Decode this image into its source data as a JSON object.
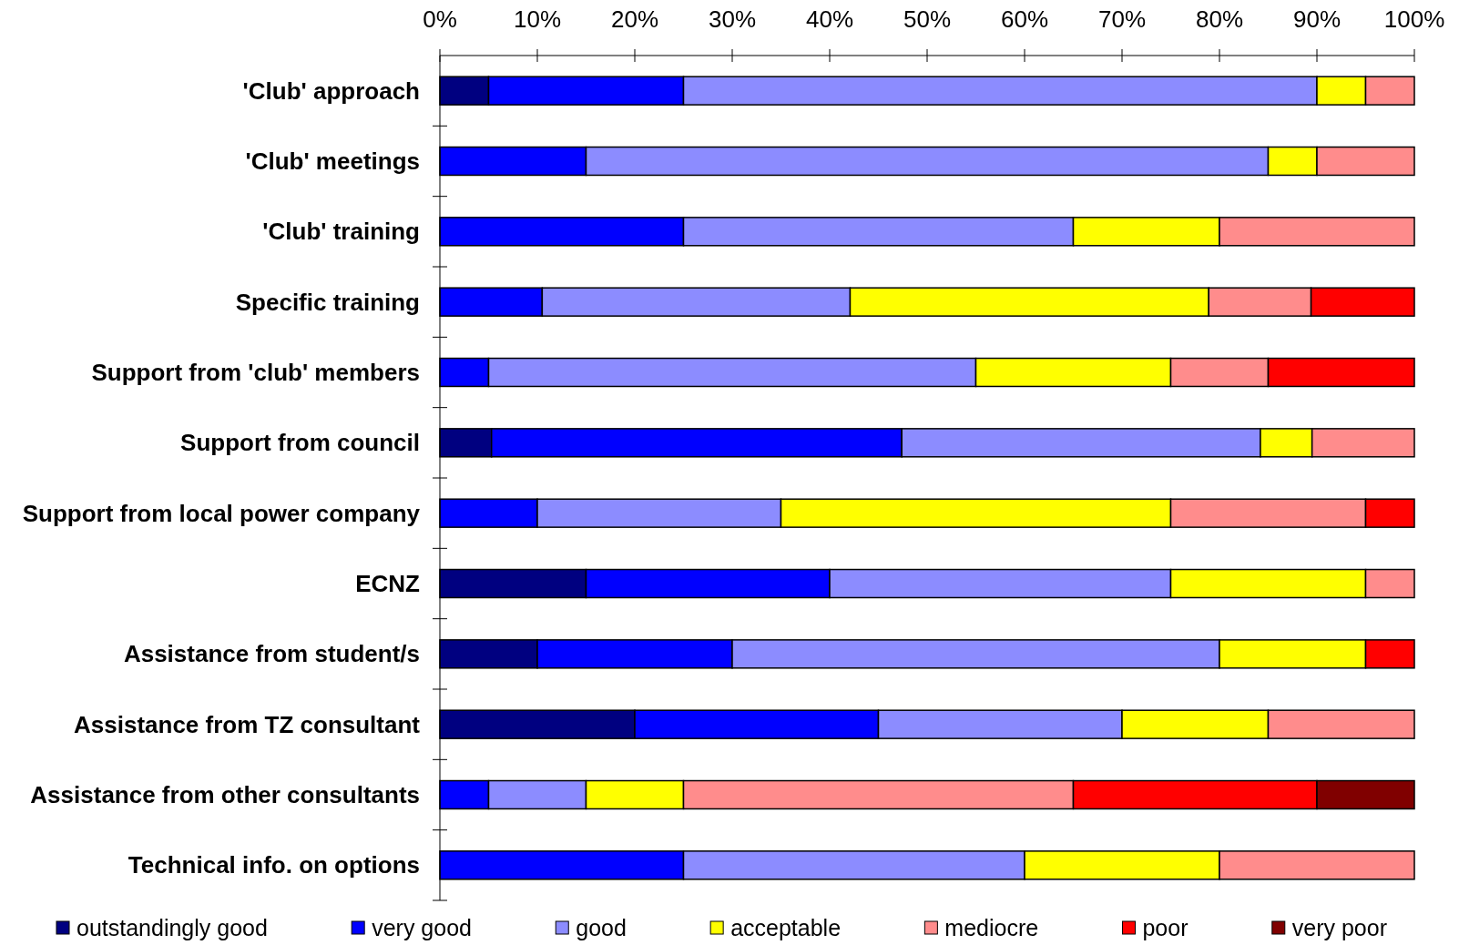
{
  "chart_data": {
    "type": "bar",
    "orientation": "horizontal",
    "stacked": true,
    "categories": [
      "'Club' approach",
      "'Club' meetings",
      "'Club' training",
      "Specific training",
      "Support from 'club' members",
      "Support from council",
      "Support from local power company",
      "ECNZ",
      "Assistance from student/s",
      "Assistance from TZ consultant",
      "Assistance from other consultants",
      "Technical info. on options"
    ],
    "series": [
      {
        "name": "outstandingly good",
        "color": "#000080",
        "values": [
          5,
          null,
          null,
          null,
          null,
          5.3,
          null,
          15,
          10,
          20,
          null,
          null
        ]
      },
      {
        "name": "very good",
        "color": "#0000ff",
        "values": [
          20,
          15,
          25,
          10.5,
          5,
          42.1,
          10,
          25,
          20,
          25,
          5,
          25
        ]
      },
      {
        "name": "good",
        "color": "#8c8cff",
        "values": [
          65,
          70,
          40,
          31.6,
          50,
          36.8,
          25,
          35,
          50,
          25,
          10,
          35
        ]
      },
      {
        "name": "acceptable",
        "color": "#ffff00",
        "values": [
          5,
          5,
          15,
          36.8,
          20,
          5.3,
          40,
          20,
          15,
          15,
          10,
          20
        ]
      },
      {
        "name": "mediocre",
        "color": "#ff8c8c",
        "values": [
          5,
          10,
          20,
          10.5,
          10,
          10.5,
          20,
          5,
          null,
          15,
          40,
          20
        ]
      },
      {
        "name": "poor",
        "color": "#ff0000",
        "values": [
          null,
          null,
          null,
          10.6,
          15,
          null,
          5,
          null,
          5,
          null,
          25,
          null
        ]
      },
      {
        "name": "very poor",
        "color": "#800000",
        "values": [
          null,
          null,
          null,
          null,
          null,
          null,
          null,
          null,
          null,
          null,
          10,
          null
        ]
      }
    ],
    "xlim": [
      0,
      100
    ],
    "xticks": [
      {
        "value": 0,
        "label": "0%"
      },
      {
        "value": 10,
        "label": "10%"
      },
      {
        "value": 20,
        "label": "20%"
      },
      {
        "value": 30,
        "label": "30%"
      },
      {
        "value": 40,
        "label": "40%"
      },
      {
        "value": 50,
        "label": "50%"
      },
      {
        "value": 60,
        "label": "60%"
      },
      {
        "value": 70,
        "label": "70%"
      },
      {
        "value": 80,
        "label": "80%"
      },
      {
        "value": 90,
        "label": "90%"
      },
      {
        "value": 100,
        "label": "100%"
      }
    ],
    "legend": "bottom"
  }
}
